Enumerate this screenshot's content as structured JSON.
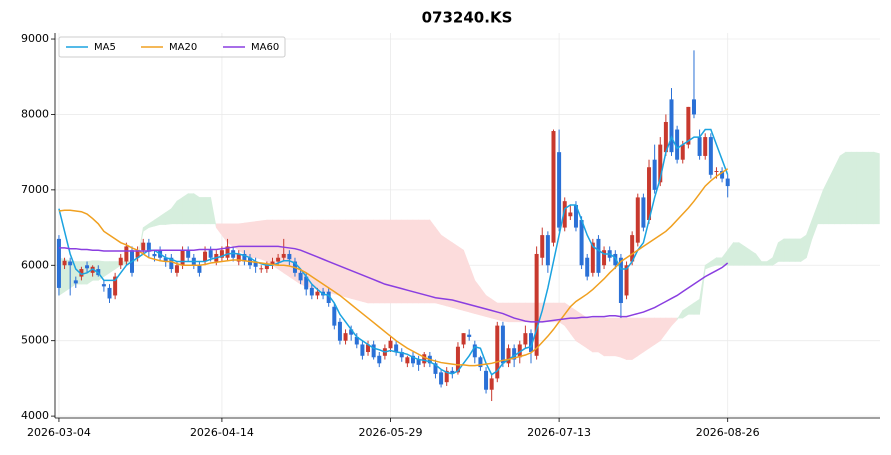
{
  "chart_data": {
    "type": "candlestick",
    "title": "073240.KS",
    "xlim": [
      -0.7,
      146.1
    ],
    "xticks": [
      {
        "value": 0,
        "label": "2026-03-04"
      },
      {
        "value": 29,
        "label": "2026-04-14"
      },
      {
        "value": 59,
        "label": "2026-05-29"
      },
      {
        "value": 89,
        "label": "2026-07-13"
      },
      {
        "value": 119,
        "label": "2026-08-26"
      }
    ],
    "ylim": [
      3975,
      9080
    ],
    "yticks": [
      4000,
      5000,
      6000,
      7000,
      8000,
      9000
    ],
    "grid": true,
    "legend": "upper left",
    "candles": {
      "up_color": "#c8392e",
      "down_color": "#2a70d6",
      "open": [
        6350,
        6000,
        6050,
        5800,
        5850,
        6000,
        5900,
        5950,
        5750,
        5700,
        5600,
        6000,
        6050,
        6200,
        6100,
        6200,
        6300,
        6150,
        6200,
        6100,
        6100,
        5900,
        6000,
        6200,
        6100,
        6000,
        6050,
        6200,
        6050,
        6100,
        6100,
        6200,
        6050,
        6150,
        6100,
        6050,
        5950,
        5950,
        6000,
        6050,
        6100,
        6150,
        6050,
        5900,
        5850,
        5700,
        5600,
        5650,
        5650,
        5450,
        5250,
        5000,
        5150,
        5050,
        4950,
        4850,
        4950,
        4800,
        4800,
        4900,
        4950,
        4850,
        4700,
        4800,
        4750,
        4700,
        4800,
        4700,
        4580,
        4450,
        4600,
        4580,
        4950,
        5080,
        4950,
        4780,
        4600,
        4350,
        4500,
        5200,
        4700,
        4900,
        4780,
        4950,
        5100,
        4800,
        6100,
        6400,
        6300,
        7500,
        6500,
        6650,
        6800,
        6600,
        6100,
        5900,
        6350,
        6000,
        6200,
        6150,
        6100,
        5600,
        6050,
        6300,
        6900,
        6600,
        7400,
        7100,
        7500,
        8200,
        7800,
        7400,
        7600,
        8200,
        7700,
        7450,
        7700,
        7250,
        7250,
        7150
      ],
      "high": [
        6400,
        6100,
        6100,
        5850,
        5980,
        6050,
        6000,
        6000,
        5800,
        5750,
        5900,
        6150,
        6300,
        6250,
        6250,
        6350,
        6350,
        6200,
        6250,
        6150,
        6150,
        6050,
        6250,
        6250,
        6150,
        6050,
        6250,
        6250,
        6200,
        6250,
        6350,
        6250,
        6200,
        6200,
        6150,
        6100,
        6000,
        6050,
        6100,
        6150,
        6350,
        6200,
        6100,
        5950,
        5900,
        5750,
        5700,
        5700,
        5700,
        5500,
        5300,
        5150,
        5200,
        5100,
        5000,
        5000,
        5000,
        4850,
        4950,
        5050,
        5000,
        4900,
        4800,
        4850,
        4800,
        4850,
        4850,
        4750,
        4620,
        4650,
        4650,
        4980,
        5100,
        5150,
        5000,
        4800,
        4650,
        4550,
        5250,
        5250,
        4950,
        4950,
        5000,
        5200,
        5150,
        6250,
        6500,
        6450,
        7800,
        7800,
        6900,
        6800,
        6850,
        6650,
        6150,
        6350,
        6400,
        6250,
        6250,
        6200,
        6150,
        6050,
        6450,
        6950,
        6950,
        7400,
        7600,
        7700,
        8000,
        8350,
        7850,
        7650,
        8100,
        8850,
        7800,
        7750,
        7750,
        7300,
        7300,
        7200
      ],
      "low": [
        5600,
        5950,
        5600,
        5700,
        5800,
        5900,
        5850,
        5850,
        5650,
        5500,
        5550,
        5950,
        6000,
        5850,
        6050,
        6150,
        6100,
        6050,
        6050,
        5980,
        5900,
        5850,
        5950,
        6050,
        5950,
        5850,
        6000,
        6050,
        6000,
        6050,
        6050,
        6050,
        6000,
        6000,
        5950,
        5900,
        5900,
        5900,
        5950,
        6000,
        6050,
        6000,
        5850,
        5750,
        5600,
        5550,
        5550,
        5550,
        5450,
        5150,
        4950,
        4950,
        5000,
        4900,
        4750,
        4800,
        4750,
        4650,
        4750,
        4850,
        4800,
        4720,
        4650,
        4650,
        4600,
        4650,
        4650,
        4500,
        4380,
        4400,
        4500,
        4550,
        4900,
        5000,
        4700,
        4600,
        4300,
        4200,
        4450,
        4650,
        4650,
        4650,
        4700,
        4900,
        4700,
        4750,
        6000,
        5900,
        6250,
        6450,
        6450,
        6600,
        6450,
        5950,
        5800,
        5850,
        5850,
        5950,
        6050,
        5950,
        5300,
        5550,
        6000,
        6250,
        6450,
        6550,
        6950,
        7050,
        7450,
        7450,
        7350,
        7350,
        7550,
        7950,
        7400,
        7400,
        7150,
        7150,
        7100,
        6900
      ],
      "close": [
        5700,
        6060,
        6000,
        5760,
        5950,
        5960,
        5980,
        5870,
        5720,
        5560,
        5850,
        6100,
        6250,
        5900,
        6200,
        6300,
        6180,
        6120,
        6100,
        6050,
        5950,
        6000,
        6200,
        6100,
        6000,
        5900,
        6180,
        6100,
        6150,
        6200,
        6250,
        6100,
        6150,
        6050,
        6000,
        5980,
        5960,
        6010,
        6050,
        6100,
        6150,
        6080,
        5900,
        5800,
        5680,
        5600,
        5650,
        5600,
        5500,
        5200,
        5000,
        5100,
        5080,
        4950,
        4800,
        4950,
        4780,
        4700,
        4900,
        5000,
        4850,
        4780,
        4780,
        4700,
        4680,
        4820,
        4700,
        4560,
        4420,
        4600,
        4560,
        4920,
        5100,
        5050,
        4780,
        4650,
        4350,
        4500,
        5200,
        4700,
        4900,
        4750,
        4950,
        5100,
        4850,
        6150,
        6400,
        6000,
        7780,
        6500,
        6850,
        6700,
        6500,
        6000,
        5850,
        6300,
        5900,
        6200,
        6100,
        6000,
        5500,
        6000,
        6400,
        6900,
        6500,
        7300,
        7000,
        7600,
        7900,
        7500,
        7400,
        7600,
        8100,
        8000,
        7450,
        7700,
        7200,
        7250,
        7150,
        7050
      ]
    },
    "series": [
      {
        "name": "MA5",
        "color": "#1ba3e0",
        "values": [
          6750,
          6450,
          6150,
          5950,
          5880,
          5900,
          5950,
          5900,
          5800,
          5800,
          5800,
          5900,
          6000,
          6050,
          6100,
          6150,
          6200,
          6200,
          6150,
          6100,
          6080,
          6050,
          6050,
          6050,
          6050,
          6050,
          6050,
          6080,
          6100,
          6120,
          6150,
          6160,
          6150,
          6130,
          6100,
          6050,
          6020,
          6000,
          6000,
          6030,
          6060,
          6060,
          6030,
          5950,
          5850,
          5750,
          5680,
          5620,
          5600,
          5500,
          5350,
          5250,
          5150,
          5050,
          5000,
          4950,
          4900,
          4880,
          4850,
          4870,
          4850,
          4840,
          4820,
          4780,
          4750,
          4740,
          4720,
          4680,
          4620,
          4580,
          4560,
          4600,
          4700,
          4800,
          4920,
          4900,
          4700,
          4550,
          4600,
          4700,
          4750,
          4800,
          4850,
          4900,
          4920,
          5150,
          5400,
          5700,
          6050,
          6400,
          6750,
          6800,
          6800,
          6600,
          6400,
          6250,
          6200,
          6150,
          6150,
          6100,
          5950,
          5950,
          6050,
          6200,
          6300,
          6600,
          6900,
          7150,
          7500,
          7700,
          7550,
          7600,
          7650,
          7700,
          7700,
          7800,
          7800,
          7600,
          7400,
          7200
        ]
      },
      {
        "name": "MA20",
        "color": "#f0a020",
        "values": [
          6720,
          6730,
          6730,
          6720,
          6710,
          6680,
          6620,
          6550,
          6450,
          6400,
          6350,
          6300,
          6270,
          6230,
          6200,
          6150,
          6100,
          6080,
          6060,
          6050,
          6050,
          6020,
          6000,
          6000,
          6000,
          6000,
          6010,
          6030,
          6040,
          6050,
          6060,
          6070,
          6070,
          6060,
          6050,
          6040,
          6030,
          6020,
          6010,
          6000,
          6000,
          5990,
          5970,
          5940,
          5900,
          5850,
          5800,
          5750,
          5700,
          5650,
          5600,
          5540,
          5480,
          5420,
          5360,
          5300,
          5240,
          5180,
          5120,
          5060,
          5000,
          4950,
          4900,
          4860,
          4820,
          4780,
          4750,
          4730,
          4710,
          4700,
          4690,
          4680,
          4680,
          4670,
          4670,
          4680,
          4690,
          4700,
          4720,
          4740,
          4750,
          4770,
          4790,
          4810,
          4840,
          4900,
          4980,
          5060,
          5150,
          5250,
          5350,
          5450,
          5520,
          5570,
          5620,
          5680,
          5750,
          5820,
          5900,
          5970,
          6050,
          6100,
          6150,
          6200,
          6250,
          6300,
          6350,
          6400,
          6450,
          6520,
          6600,
          6680,
          6760,
          6850,
          6950,
          7050,
          7120,
          7180,
          7230,
          7280
        ]
      },
      {
        "name": "MA60",
        "color": "#8a3ee0",
        "values": [
          6230,
          6230,
          6220,
          6220,
          6210,
          6210,
          6200,
          6200,
          6190,
          6190,
          6190,
          6190,
          6190,
          6190,
          6190,
          6190,
          6190,
          6200,
          6200,
          6200,
          6200,
          6200,
          6200,
          6200,
          6200,
          6210,
          6210,
          6210,
          6210,
          6220,
          6230,
          6240,
          6250,
          6250,
          6250,
          6250,
          6250,
          6250,
          6250,
          6250,
          6240,
          6230,
          6220,
          6200,
          6170,
          6140,
          6110,
          6080,
          6050,
          6020,
          5990,
          5960,
          5930,
          5900,
          5870,
          5840,
          5810,
          5780,
          5750,
          5730,
          5710,
          5690,
          5670,
          5650,
          5630,
          5610,
          5590,
          5570,
          5560,
          5550,
          5540,
          5520,
          5500,
          5480,
          5460,
          5440,
          5420,
          5400,
          5380,
          5360,
          5330,
          5300,
          5280,
          5260,
          5250,
          5250,
          5250,
          5260,
          5270,
          5280,
          5290,
          5300,
          5300,
          5310,
          5310,
          5320,
          5320,
          5320,
          5330,
          5330,
          5320,
          5320,
          5340,
          5360,
          5380,
          5410,
          5440,
          5480,
          5520,
          5560,
          5600,
          5650,
          5700,
          5750,
          5800,
          5850,
          5890,
          5930,
          5970,
          6030
        ]
      }
    ],
    "cloud": {
      "up_color": "#d6eedd",
      "down_color": "#fcdcdc",
      "span_a": [
        6100,
        6080,
        6060,
        6050,
        6050,
        6050,
        6060,
        6060,
        6050,
        6050,
        6050,
        6050,
        6050,
        6060,
        6080,
        6500,
        6550,
        6600,
        6650,
        6700,
        6750,
        6850,
        6900,
        6950,
        6950,
        6900,
        6900,
        6900,
        6500,
        6400,
        6300,
        6250,
        6200,
        6150,
        6100,
        6100,
        6080,
        6050,
        6000,
        5950,
        5900,
        5850,
        5800,
        5750,
        5720,
        5700,
        5680,
        5660,
        5640,
        5620,
        5600,
        5580,
        5560,
        5540,
        5520,
        5500,
        5500,
        5500,
        5500,
        5500,
        5500,
        5500,
        5500,
        5500,
        5500,
        5500,
        5500,
        5500,
        5480,
        5460,
        5440,
        5420,
        5400,
        5380,
        5360,
        5340,
        5320,
        5300,
        5280,
        5260,
        5250,
        5250,
        5250,
        5250,
        5250,
        5250,
        5250,
        5250,
        5250,
        5250,
        5200,
        5100,
        5000,
        4950,
        4900,
        4850,
        4850,
        4800,
        4800,
        4800,
        4780,
        4750,
        4750,
        4800,
        4850,
        4900,
        4950,
        5000,
        5100,
        5200,
        5280,
        5400,
        5450,
        5500,
        5550,
        6000,
        6050,
        6100,
        6100,
        6200,
        6300,
        6300,
        6250,
        6200,
        6150,
        6050,
        6050,
        6100,
        6300,
        6350,
        6350,
        6350,
        6350,
        6400,
        6600,
        6800,
        7000,
        7150,
        7300,
        7450,
        7500,
        7500,
        7500,
        7500,
        7500,
        7500,
        7480
      ],
      "span_b": [
        5600,
        5650,
        5700,
        5750,
        5750,
        5750,
        5800,
        5800,
        5850,
        5900,
        5950,
        6000,
        6020,
        6040,
        6060,
        6450,
        6500,
        6520,
        6540,
        6540,
        6550,
        6550,
        6550,
        6550,
        6550,
        6550,
        6550,
        6550,
        6550,
        6550,
        6550,
        6550,
        6550,
        6560,
        6570,
        6580,
        6590,
        6600,
        6600,
        6600,
        6600,
        6600,
        6600,
        6600,
        6600,
        6600,
        6600,
        6600,
        6600,
        6600,
        6600,
        6600,
        6600,
        6600,
        6600,
        6600,
        6600,
        6600,
        6600,
        6600,
        6600,
        6600,
        6600,
        6600,
        6600,
        6600,
        6600,
        6500,
        6400,
        6350,
        6300,
        6250,
        6200,
        6000,
        5800,
        5700,
        5600,
        5550,
        5500,
        5500,
        5500,
        5500,
        5500,
        5500,
        5500,
        5500,
        5500,
        5500,
        5500,
        5500,
        5500,
        5450,
        5400,
        5350,
        5300,
        5300,
        5300,
        5300,
        5300,
        5300,
        5300,
        5300,
        5300,
        5300,
        5300,
        5300,
        5300,
        5300,
        5300,
        5300,
        5300,
        5300,
        5350,
        5350,
        5350,
        5950,
        5980,
        6000,
        6000,
        6000,
        6000,
        6000,
        6000,
        6000,
        6000,
        6000,
        6000,
        6000,
        6050,
        6050,
        6050,
        6050,
        6050,
        6100,
        6350,
        6550,
        6550,
        6550,
        6550,
        6550,
        6550,
        6550,
        6550,
        6550,
        6550,
        6550,
        6550
      ]
    }
  }
}
